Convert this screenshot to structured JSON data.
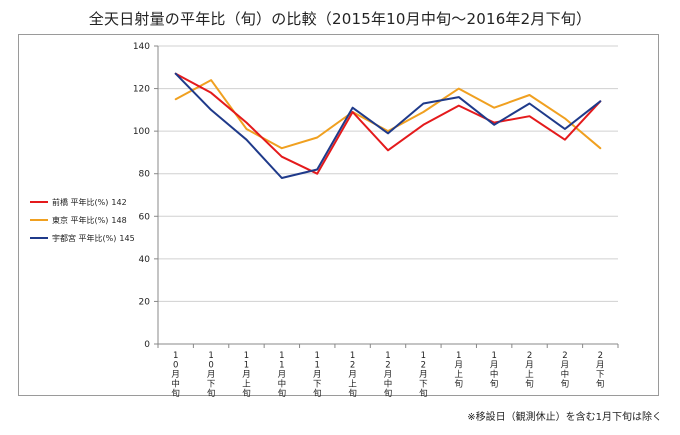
{
  "title": "全天日射量の平年比（旬）の比較（2015年10月中旬〜2016年2月下旬）",
  "footnote": "※移設日（観測休止）を含む1月下旬は除く",
  "chart_data": {
    "type": "line",
    "title": "全天日射量の平年比（旬）の比較（2015年10月中旬〜2016年2月下旬）",
    "xlabel": "",
    "ylabel": "",
    "ylim": [
      0,
      140
    ],
    "yticks": [
      0,
      20,
      40,
      60,
      80,
      100,
      120,
      140
    ],
    "grid": "horizontal",
    "legend_position": "left",
    "categories": [
      "10月中旬",
      "10月下旬",
      "11月上旬",
      "11月中旬",
      "11月下旬",
      "12月上旬",
      "12月中旬",
      "12月下旬",
      "1月上旬",
      "1月中旬",
      "2月上旬",
      "2月中旬",
      "2月下旬"
    ],
    "series": [
      {
        "name": "前橋 平年比(%)",
        "total": "142",
        "color": "#e41a1c",
        "values": [
          127,
          118,
          104,
          88,
          80,
          109,
          91,
          103,
          112,
          104,
          107,
          96,
          114
        ]
      },
      {
        "name": "東京 平年比(%)",
        "total": "148",
        "color": "#f0a020",
        "values": [
          115,
          124,
          101,
          92,
          97,
          109,
          100,
          109,
          120,
          111,
          117,
          106,
          92
        ]
      },
      {
        "name": "宇都宮 平年比(%)",
        "total": "145",
        "color": "#1f3a8a",
        "values": [
          127,
          110,
          96,
          78,
          82,
          111,
          99,
          113,
          116,
          103,
          113,
          101,
          114
        ]
      }
    ]
  }
}
